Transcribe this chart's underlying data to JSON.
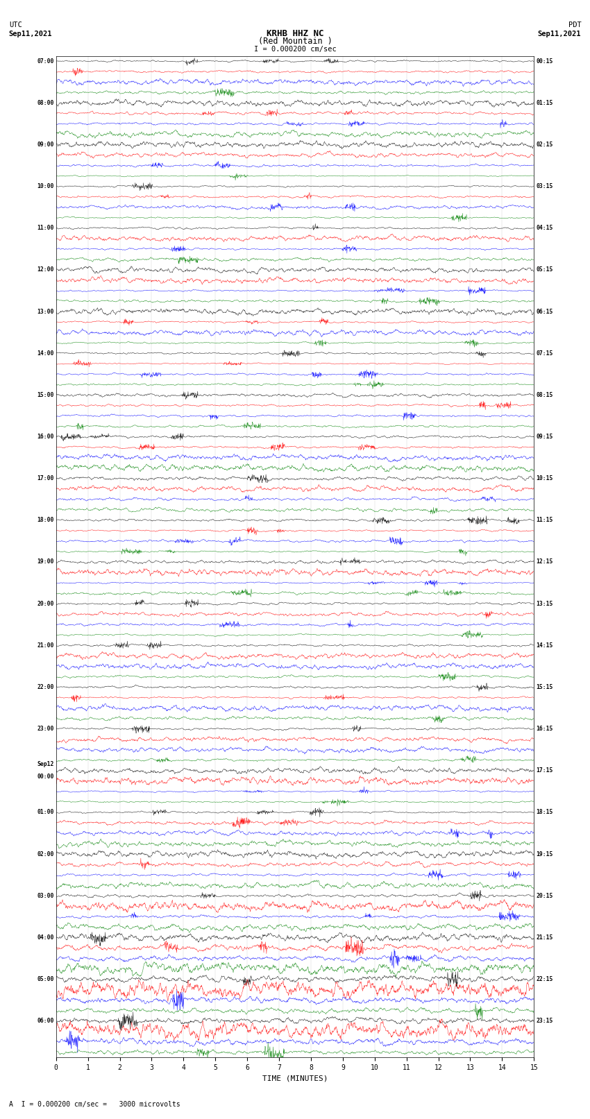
{
  "title_line1": "KRHB HHZ NC",
  "title_line2": "(Red Mountain )",
  "title_scale": "I = 0.000200 cm/sec",
  "left_header_line1": "UTC",
  "left_header_line2": "Sep11,2021",
  "right_header_line1": "PDT",
  "right_header_line2": "Sep11,2021",
  "bottom_label": "TIME (MINUTES)",
  "bottom_note": "A  I = 0.000200 cm/sec =   3000 microvolts",
  "utc_labels": [
    "07:00",
    "08:00",
    "09:00",
    "10:00",
    "11:00",
    "12:00",
    "13:00",
    "14:00",
    "15:00",
    "16:00",
    "17:00",
    "18:00",
    "19:00",
    "20:00",
    "21:00",
    "22:00",
    "23:00",
    "Sep12\n00:00",
    "01:00",
    "02:00",
    "03:00",
    "04:00",
    "05:00",
    "06:00"
  ],
  "pdt_labels": [
    "00:15",
    "01:15",
    "02:15",
    "03:15",
    "04:15",
    "05:15",
    "06:15",
    "07:15",
    "08:15",
    "09:15",
    "10:15",
    "11:15",
    "12:15",
    "13:15",
    "14:15",
    "15:15",
    "16:15",
    "17:15",
    "18:15",
    "19:15",
    "20:15",
    "21:15",
    "22:15",
    "23:15"
  ],
  "trace_colors": [
    "black",
    "red",
    "blue",
    "green"
  ],
  "n_rows": 24,
  "traces_per_row": 4,
  "x_ticks": [
    0,
    1,
    2,
    3,
    4,
    5,
    6,
    7,
    8,
    9,
    10,
    11,
    12,
    13,
    14,
    15
  ],
  "x_min": 0,
  "x_max": 15,
  "background_color": "white",
  "plot_bg": "white",
  "fig_width": 8.5,
  "fig_height": 16.13,
  "dpi": 100
}
